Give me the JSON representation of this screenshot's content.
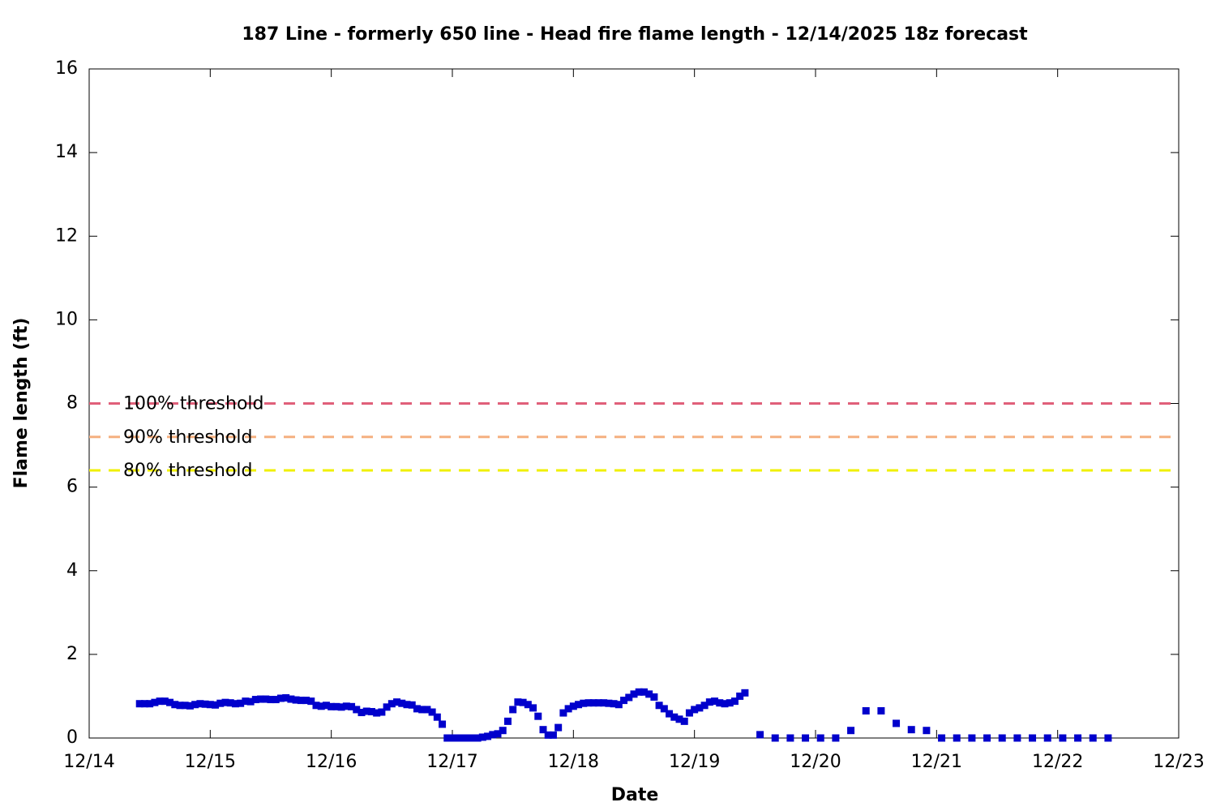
{
  "chart_data": {
    "type": "scatter",
    "title": "187 Line - formerly 650 line - Head fire flame length - 12/14/2025 18z forecast",
    "x_label": "Date",
    "y_label": "Flame length (ft)",
    "xlim": [
      14,
      23
    ],
    "xticks": [
      {
        "value": 14,
        "label": "12/14"
      },
      {
        "value": 15,
        "label": "12/15"
      },
      {
        "value": 16,
        "label": "12/16"
      },
      {
        "value": 17,
        "label": "12/17"
      },
      {
        "value": 18,
        "label": "12/18"
      },
      {
        "value": 19,
        "label": "12/19"
      },
      {
        "value": 20,
        "label": "12/20"
      },
      {
        "value": 21,
        "label": "12/21"
      },
      {
        "value": 22,
        "label": "12/22"
      },
      {
        "value": 23,
        "label": "12/23"
      }
    ],
    "ylim": [
      0,
      16
    ],
    "yticks": [
      0,
      2,
      4,
      6,
      8,
      10,
      12,
      14,
      16
    ],
    "thresholds": [
      {
        "name": "100% threshold",
        "value": 8,
        "color": "#e0607a"
      },
      {
        "name": "90% threshold",
        "value": 7.2,
        "color": "#f5b080"
      },
      {
        "name": "80% threshold",
        "value": 6.4,
        "color": "#f0f000"
      }
    ],
    "series": [
      {
        "color": "#0000cc",
        "x": [
          14.4167,
          14.4583,
          14.5,
          14.5417,
          14.5833,
          14.625,
          14.6667,
          14.7083,
          14.75,
          14.7917,
          14.8333,
          14.875,
          14.9167,
          14.9583,
          15,
          15.0417,
          15.0833,
          15.125,
          15.1667,
          15.2083,
          15.25,
          15.2917,
          15.3333,
          15.375,
          15.4167,
          15.4583,
          15.5,
          15.5417,
          15.5833,
          15.625,
          15.6667,
          15.7083,
          15.75,
          15.7917,
          15.8333,
          15.875,
          15.9167,
          15.9583,
          16,
          16.0417,
          16.0833,
          16.125,
          16.1667,
          16.2083,
          16.25,
          16.2917,
          16.3333,
          16.375,
          16.4167,
          16.4583,
          16.5,
          16.5417,
          16.5833,
          16.625,
          16.6667,
          16.7083,
          16.75,
          16.7917,
          16.8333,
          16.875,
          16.9167,
          16.9583,
          17,
          17.0417,
          17.0833,
          17.125,
          17.1667,
          17.2083,
          17.25,
          17.2917,
          17.3333,
          17.375,
          17.4167,
          17.4583,
          17.5,
          17.5417,
          17.5833,
          17.625,
          17.6667,
          17.7083,
          17.75,
          17.7917,
          17.8333,
          17.875,
          17.9167,
          17.9583,
          18,
          18.0417,
          18.0833,
          18.125,
          18.1667,
          18.2083,
          18.25,
          18.2917,
          18.3333,
          18.375,
          18.4167,
          18.4583,
          18.5,
          18.5417,
          18.5833,
          18.625,
          18.6667,
          18.7083,
          18.75,
          18.7917,
          18.8333,
          18.875,
          18.9167,
          18.9583,
          19,
          19.0417,
          19.0833,
          19.125,
          19.1667,
          19.2083,
          19.25,
          19.2917,
          19.3333,
          19.375,
          19.4167,
          19.5417,
          19.6667,
          19.7917,
          19.9167,
          20.0417,
          20.1667,
          20.2917,
          20.4167,
          20.5417,
          20.6667,
          20.7917,
          20.9167,
          21.0417,
          21.1667,
          21.2917,
          21.4167,
          21.5417,
          21.6667,
          21.7917,
          21.9167,
          22.0417,
          22.1667,
          22.2917,
          22.4167
        ],
        "values": [
          0.82,
          0.82,
          0.82,
          0.85,
          0.88,
          0.88,
          0.85,
          0.8,
          0.78,
          0.78,
          0.77,
          0.8,
          0.82,
          0.81,
          0.8,
          0.79,
          0.83,
          0.85,
          0.84,
          0.82,
          0.83,
          0.88,
          0.87,
          0.92,
          0.93,
          0.93,
          0.92,
          0.92,
          0.95,
          0.96,
          0.93,
          0.91,
          0.9,
          0.9,
          0.88,
          0.78,
          0.76,
          0.78,
          0.75,
          0.75,
          0.74,
          0.76,
          0.75,
          0.68,
          0.61,
          0.64,
          0.63,
          0.6,
          0.62,
          0.74,
          0.82,
          0.86,
          0.83,
          0.8,
          0.79,
          0.7,
          0.68,
          0.68,
          0.62,
          0.5,
          0.33,
          0,
          0,
          0,
          0,
          0,
          0,
          0,
          0.02,
          0.04,
          0.08,
          0.1,
          0.18,
          0.4,
          0.68,
          0.86,
          0.85,
          0.8,
          0.72,
          0.52,
          0.2,
          0.07,
          0.07,
          0.25,
          0.6,
          0.7,
          0.76,
          0.8,
          0.83,
          0.84,
          0.84,
          0.84,
          0.84,
          0.83,
          0.82,
          0.8,
          0.9,
          0.97,
          1.05,
          1.1,
          1.1,
          1.05,
          0.98,
          0.78,
          0.7,
          0.58,
          0.5,
          0.45,
          0.4,
          0.6,
          0.68,
          0.72,
          0.78,
          0.86,
          0.88,
          0.84,
          0.82,
          0.84,
          0.88,
          1.0,
          1.08,
          0.08,
          0,
          0,
          0,
          0,
          0,
          0.18,
          0.65,
          0.65,
          0.35,
          0.2,
          0.18,
          0,
          0,
          0,
          0,
          0,
          0,
          0,
          0,
          0,
          0,
          0,
          0
        ]
      }
    ]
  }
}
